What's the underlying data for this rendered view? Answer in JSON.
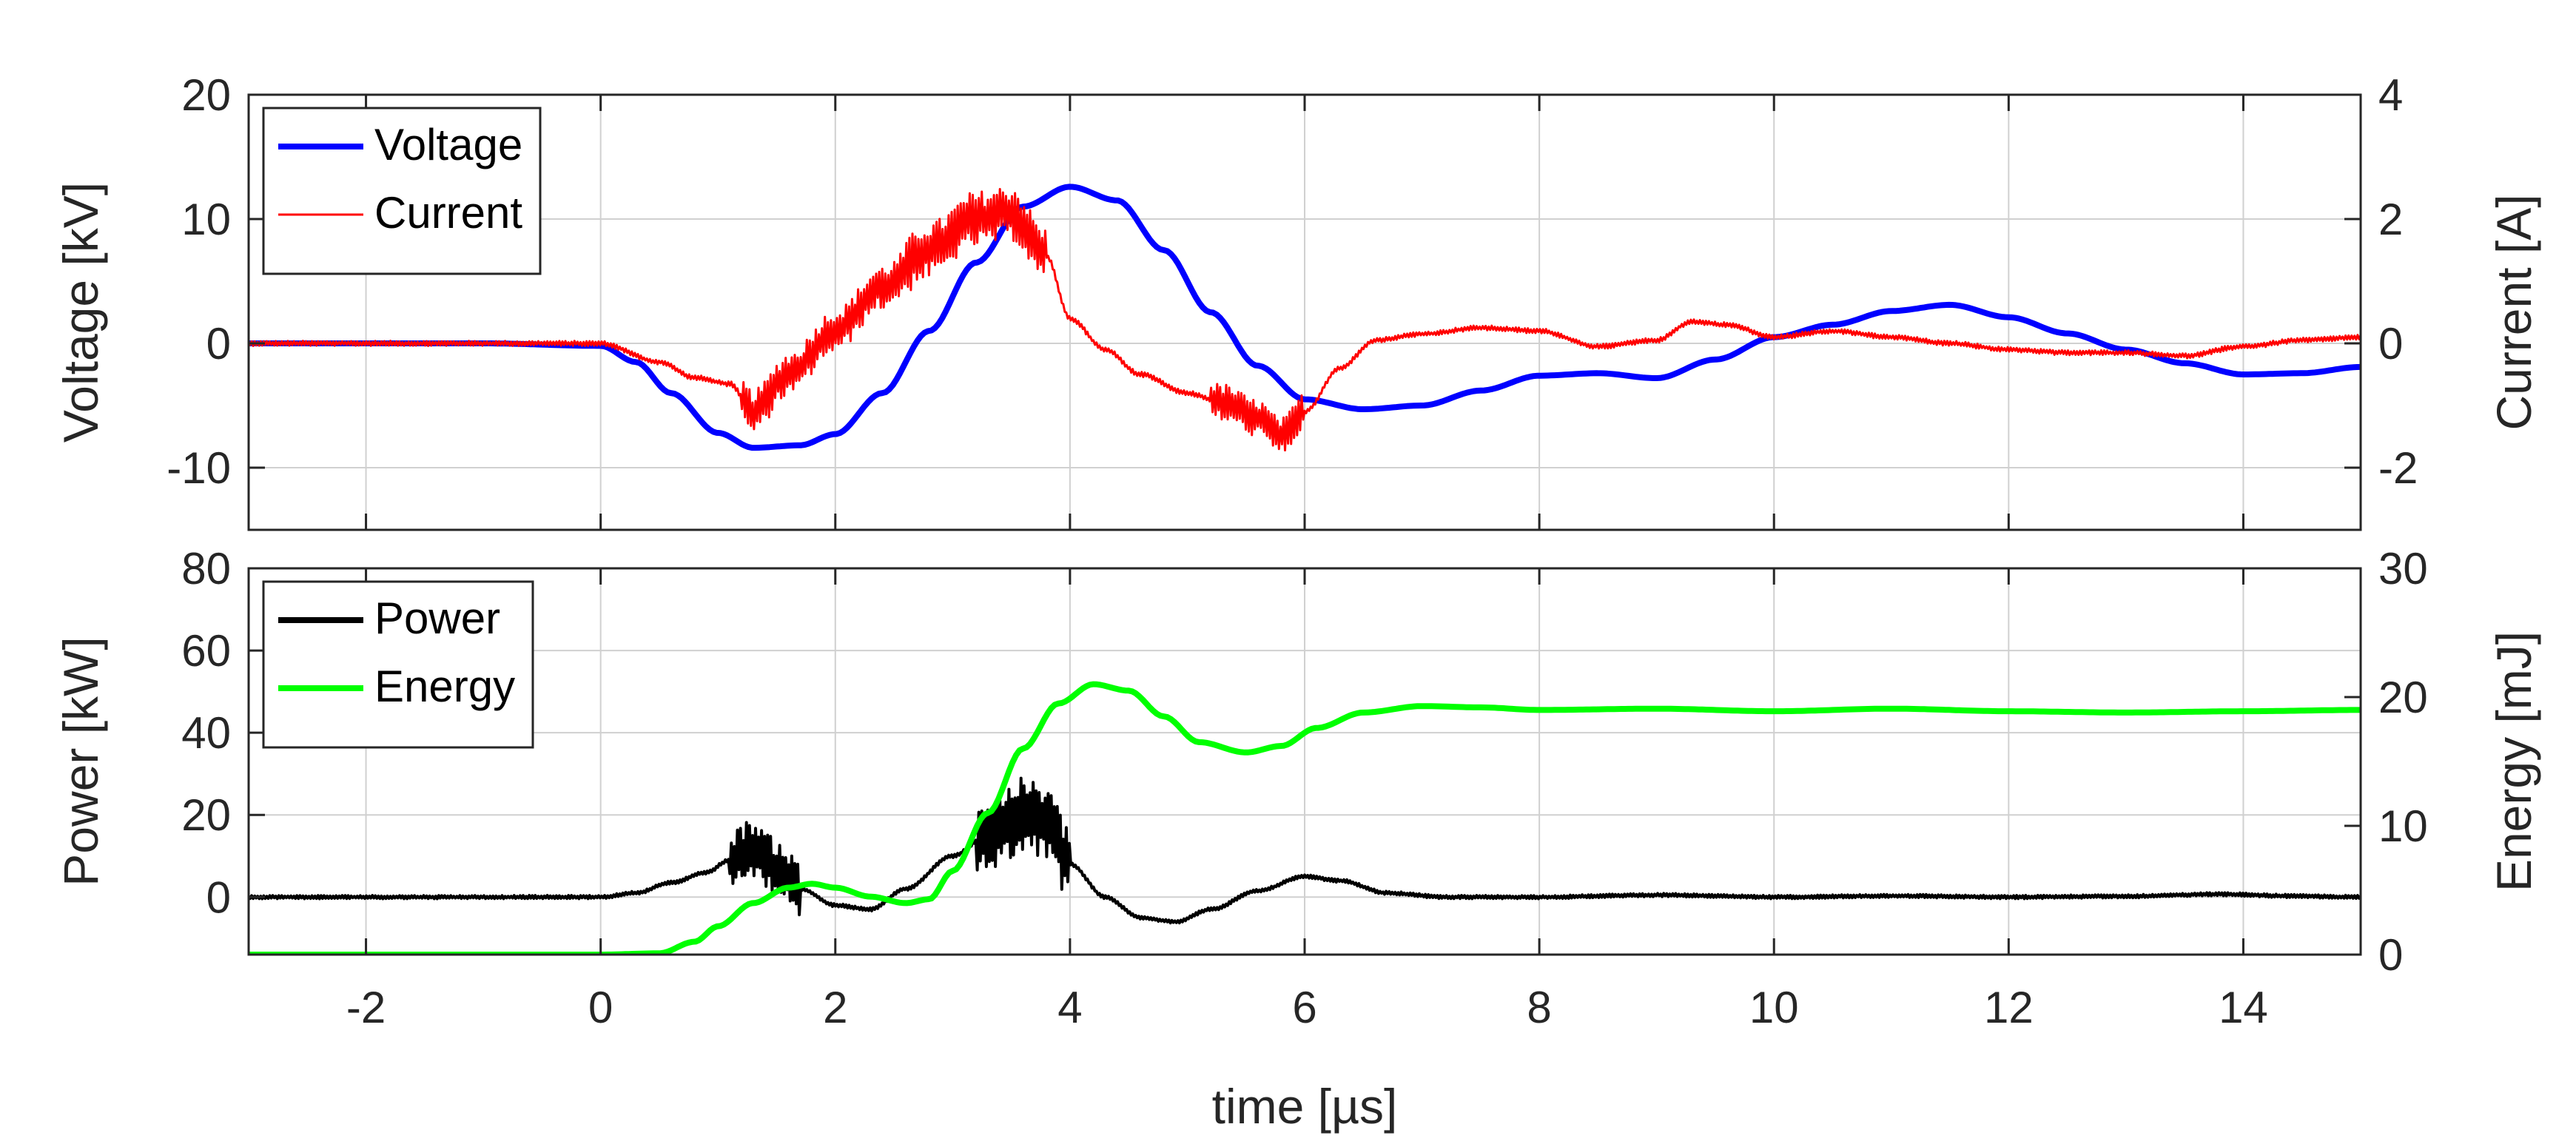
{
  "chart_data": [
    {
      "type": "line",
      "xlim": [
        -3,
        15
      ],
      "xticks": [
        -2,
        0,
        2,
        4,
        6,
        8,
        10,
        12,
        14
      ],
      "grid": true,
      "legend_position": "top-left",
      "y_left": {
        "label": "Voltage [kV]",
        "lim": [
          -15,
          20
        ],
        "ticks": [
          -10,
          0,
          10,
          20
        ]
      },
      "y_right": {
        "label": "Current [A]",
        "lim": [
          -3,
          4
        ],
        "ticks": [
          -2,
          0,
          2,
          4
        ]
      },
      "series": [
        {
          "name": "Voltage",
          "axis": "left",
          "color": "#0000ff",
          "x": [
            -3,
            -1,
            0,
            0.3,
            0.6,
            1.0,
            1.3,
            1.7,
            2.0,
            2.4,
            2.8,
            3.2,
            3.6,
            4.0,
            4.4,
            4.8,
            5.2,
            5.6,
            6.0,
            6.5,
            7.0,
            7.5,
            8.0,
            8.5,
            9.0,
            9.5,
            10.0,
            10.5,
            11.0,
            11.5,
            12.0,
            12.5,
            13.0,
            13.5,
            14.0,
            14.5,
            15.0
          ],
          "y": [
            0,
            0,
            -0.2,
            -1.5,
            -4,
            -7.2,
            -8.4,
            -8.2,
            -7.3,
            -4,
            1,
            6.5,
            11,
            12.6,
            11.5,
            7.5,
            2.5,
            -1.8,
            -4.5,
            -5.3,
            -5,
            -3.8,
            -2.6,
            -2.4,
            -2.8,
            -1.3,
            0.5,
            1.5,
            2.6,
            3.1,
            2.1,
            0.8,
            -0.5,
            -1.6,
            -2.5,
            -2.4,
            -1.9
          ]
        },
        {
          "name": "Current",
          "axis": "right",
          "color": "#ff0000",
          "x": [
            -3,
            -1,
            0,
            0.5,
            0.8,
            1.1,
            1.3,
            1.6,
            2.0,
            2.4,
            2.8,
            3.2,
            3.5,
            3.8,
            4.0,
            4.3,
            4.6,
            5.0,
            5.3,
            5.6,
            5.8,
            6.0,
            6.3,
            6.6,
            7.0,
            7.5,
            8.0,
            8.5,
            9.0,
            9.3,
            9.6,
            10.0,
            10.5,
            11.0,
            11.5,
            12.0,
            12.5,
            13.0,
            13.5,
            14.0,
            14.5,
            15.0
          ],
          "y": [
            0,
            0,
            0,
            -0.3,
            -0.55,
            -0.65,
            -1.1,
            -0.5,
            0.2,
            0.9,
            1.5,
            2.0,
            2.1,
            1.4,
            0.4,
            -0.1,
            -0.5,
            -0.8,
            -0.95,
            -1.2,
            -1.5,
            -1.1,
            -0.4,
            0.05,
            0.15,
            0.25,
            0.2,
            -0.05,
            0.05,
            0.35,
            0.3,
            0.1,
            0.2,
            0.1,
            0.0,
            -0.1,
            -0.15,
            -0.15,
            -0.2,
            -0.05,
            0.05,
            0.1
          ]
        }
      ]
    },
    {
      "type": "line",
      "xlim": [
        -3,
        15
      ],
      "xticks": [
        -2,
        0,
        2,
        4,
        6,
        8,
        10,
        12,
        14
      ],
      "xlabel": "time [µs]",
      "grid": true,
      "legend_position": "top-left",
      "y_left": {
        "label": "Power [kW]",
        "lim": [
          -14,
          80
        ],
        "ticks": [
          0,
          20,
          40,
          60,
          80
        ]
      },
      "y_right": {
        "label": "Energy [mJ]",
        "lim": [
          0,
          30
        ],
        "ticks": [
          0,
          10,
          20,
          30
        ]
      },
      "series": [
        {
          "name": "Power",
          "axis": "left",
          "color": "#000000",
          "x": [
            -3,
            -1,
            0,
            0.3,
            0.6,
            0.9,
            1.1,
            1.3,
            1.5,
            1.7,
            2.0,
            2.3,
            2.6,
            3.0,
            3.3,
            3.6,
            3.8,
            4.0,
            4.3,
            4.6,
            4.9,
            5.2,
            5.6,
            6.0,
            6.3,
            6.7,
            7.2,
            8.0,
            9.0,
            10.0,
            11.0,
            12.0,
            13.0,
            13.8,
            14.5,
            15.0
          ],
          "y": [
            0,
            0,
            0,
            1,
            3.5,
            6,
            9,
            12,
            7,
            2,
            -2,
            -3,
            2,
            10,
            15,
            20,
            18,
            8,
            0,
            -5,
            -6,
            -3,
            1.5,
            5,
            4,
            1,
            0,
            0,
            0.5,
            0,
            0.3,
            0,
            0.2,
            0.7,
            0.2,
            0
          ]
        },
        {
          "name": "Energy",
          "axis": "right",
          "color": "#00ff00",
          "x": [
            -3,
            0,
            0.5,
            0.8,
            1.0,
            1.3,
            1.6,
            1.8,
            2.0,
            2.3,
            2.6,
            2.8,
            3.0,
            3.3,
            3.6,
            3.9,
            4.2,
            4.5,
            4.8,
            5.1,
            5.5,
            5.8,
            6.1,
            6.5,
            7.0,
            7.5,
            8.0,
            9.0,
            10.0,
            11.0,
            12.0,
            13.0,
            14.0,
            15.0
          ],
          "y": [
            0,
            0,
            0.1,
            1,
            2.2,
            4,
            5.2,
            5.5,
            5.2,
            4.5,
            4,
            4.3,
            6.5,
            11,
            16,
            19.5,
            21,
            20.5,
            18.5,
            16.5,
            15.7,
            16.2,
            17.6,
            18.8,
            19.3,
            19.2,
            19.0,
            19.1,
            18.9,
            19.1,
            18.9,
            18.8,
            18.9,
            19.0
          ]
        }
      ]
    }
  ]
}
